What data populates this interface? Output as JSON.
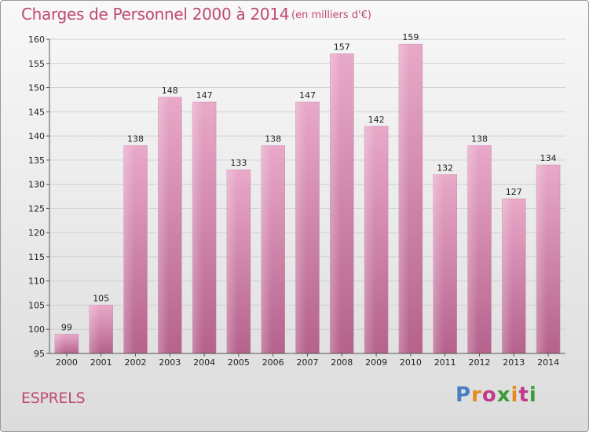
{
  "header": {
    "title": "Charges de Personnel 2000 à 2014",
    "subtitle": "(en milliers d'€)"
  },
  "footer": {
    "commune": "ESPRELS",
    "logo_text": "Proxiti",
    "logo_colors": [
      "#4a7fc1",
      "#e58a1f",
      "#c0398a",
      "#3a9b3a",
      "#e58a1f",
      "#c0398a",
      "#3a9b3a"
    ]
  },
  "chart_data": {
    "type": "bar",
    "title": "Charges de Personnel 2000 à 2014",
    "subtitle": "(en milliers d'€)",
    "xlabel": "",
    "ylabel": "",
    "categories": [
      "2000",
      "2001",
      "2002",
      "2003",
      "2004",
      "2005",
      "2006",
      "2007",
      "2008",
      "2009",
      "2010",
      "2011",
      "2012",
      "2013",
      "2014"
    ],
    "values": [
      99,
      105,
      138,
      148,
      147,
      133,
      138,
      147,
      157,
      142,
      159,
      132,
      138,
      127,
      134
    ],
    "ylim": [
      95,
      160
    ],
    "yticks": [
      95,
      100,
      105,
      110,
      115,
      120,
      125,
      130,
      135,
      140,
      145,
      150,
      155,
      160
    ],
    "grid": true,
    "bar_color": "#d77faa"
  }
}
